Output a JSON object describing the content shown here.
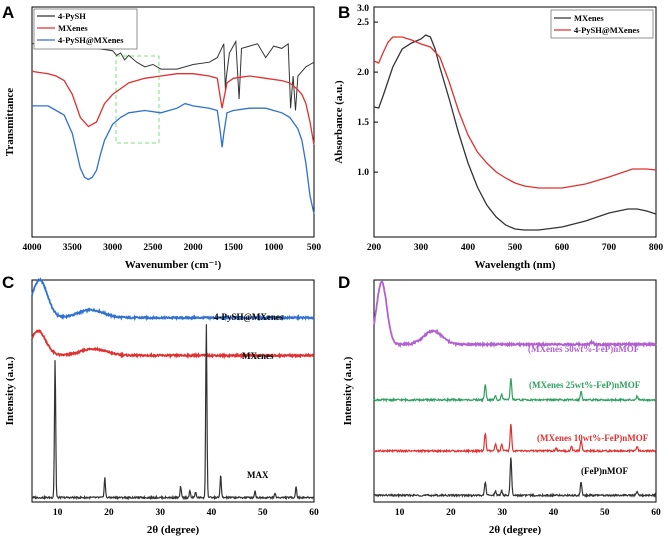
{
  "chart_data": [
    {
      "panel": "A",
      "type": "line",
      "xlabel": "Wavenumber (cm⁻¹)",
      "ylabel": "Transmittance",
      "xlim": [
        4000,
        500
      ],
      "ylim": [
        0,
        1
      ],
      "xticks": [
        4000,
        3500,
        3000,
        2500,
        2000,
        1500,
        1000,
        500
      ],
      "y_ticks_shown": false,
      "legend_position": "top-left",
      "highlight_region": [
        2900,
        2400
      ],
      "series": [
        {
          "name": "4-PySH",
          "color": "#333333",
          "x": [
            4000,
            3800,
            3600,
            3400,
            3200,
            3000,
            2950,
            2900,
            2850,
            2800,
            2700,
            2600,
            2500,
            2400,
            2200,
            2000,
            1800,
            1700,
            1620,
            1600,
            1590,
            1550,
            1470,
            1430,
            1400,
            1300,
            1200,
            1100,
            1000,
            900,
            820,
            790,
            760,
            730,
            700,
            650,
            600,
            550,
            500
          ],
          "y": [
            0.84,
            0.845,
            0.84,
            0.83,
            0.82,
            0.81,
            0.79,
            0.8,
            0.77,
            0.79,
            0.76,
            0.74,
            0.75,
            0.73,
            0.73,
            0.75,
            0.76,
            0.78,
            0.84,
            0.64,
            0.69,
            0.8,
            0.85,
            0.6,
            0.82,
            0.83,
            0.84,
            0.78,
            0.83,
            0.82,
            0.84,
            0.56,
            0.7,
            0.55,
            0.7,
            0.72,
            0.74,
            0.75,
            0.76
          ]
        },
        {
          "name": "MXenes",
          "color": "#e03030",
          "x": [
            4000,
            3800,
            3700,
            3600,
            3500,
            3400,
            3300,
            3200,
            3100,
            3000,
            2800,
            2600,
            2400,
            2200,
            2000,
            1800,
            1700,
            1660,
            1640,
            1620,
            1580,
            1500,
            1300,
            1100,
            900,
            800,
            700,
            650,
            600,
            550,
            500
          ],
          "y": [
            0.72,
            0.71,
            0.7,
            0.68,
            0.62,
            0.52,
            0.48,
            0.5,
            0.58,
            0.62,
            0.67,
            0.69,
            0.7,
            0.71,
            0.71,
            0.7,
            0.69,
            0.6,
            0.56,
            0.6,
            0.67,
            0.69,
            0.7,
            0.69,
            0.68,
            0.67,
            0.64,
            0.62,
            0.58,
            0.5,
            0.4
          ]
        },
        {
          "name": "4-PySH@MXenes",
          "color": "#3070d0",
          "x": [
            4000,
            3800,
            3700,
            3600,
            3500,
            3400,
            3350,
            3300,
            3250,
            3200,
            3150,
            3100,
            3000,
            2900,
            2800,
            2600,
            2400,
            2200,
            2100,
            2000,
            1800,
            1700,
            1660,
            1640,
            1620,
            1580,
            1500,
            1300,
            1100,
            1000,
            900,
            800,
            700,
            650,
            600,
            550,
            500
          ],
          "y": [
            0.57,
            0.57,
            0.55,
            0.53,
            0.45,
            0.3,
            0.26,
            0.25,
            0.26,
            0.29,
            0.36,
            0.42,
            0.49,
            0.52,
            0.54,
            0.55,
            0.54,
            0.56,
            0.58,
            0.57,
            0.56,
            0.55,
            0.45,
            0.39,
            0.45,
            0.54,
            0.55,
            0.56,
            0.56,
            0.55,
            0.54,
            0.52,
            0.47,
            0.42,
            0.32,
            0.18,
            0.1
          ]
        }
      ]
    },
    {
      "panel": "B",
      "type": "line",
      "xlabel": "Wavelength (nm)",
      "ylabel": "Absorbance (a.u.)",
      "xlim": [
        200,
        800
      ],
      "ylim": [
        0.7,
        3.0
      ],
      "xticks": [
        200,
        300,
        400,
        500,
        600,
        700,
        800
      ],
      "yticks": [
        1.0,
        1.5,
        2.0,
        2.5,
        3.0
      ],
      "legend_position": "top-right",
      "series": [
        {
          "name": "MXenes",
          "color": "#333333",
          "x": [
            200,
            210,
            220,
            240,
            260,
            280,
            300,
            310,
            320,
            330,
            340,
            360,
            380,
            400,
            420,
            440,
            460,
            480,
            500,
            520,
            550,
            600,
            650,
            700,
            740,
            760,
            780,
            800
          ],
          "y": [
            2.0,
            1.99,
            2.12,
            2.4,
            2.58,
            2.64,
            2.68,
            2.72,
            2.7,
            2.58,
            2.4,
            2.08,
            1.74,
            1.44,
            1.2,
            1.02,
            0.9,
            0.82,
            0.78,
            0.77,
            0.77,
            0.8,
            0.86,
            0.94,
            0.98,
            0.98,
            0.96,
            0.93
          ]
        },
        {
          "name": "4-PySH@MXenes",
          "color": "#e03030",
          "x": [
            200,
            210,
            220,
            230,
            240,
            260,
            280,
            300,
            320,
            340,
            360,
            380,
            400,
            420,
            440,
            460,
            480,
            500,
            520,
            550,
            600,
            650,
            700,
            750,
            780,
            800
          ],
          "y": [
            2.46,
            2.44,
            2.55,
            2.65,
            2.7,
            2.7,
            2.67,
            2.63,
            2.6,
            2.5,
            2.25,
            1.96,
            1.72,
            1.55,
            1.44,
            1.35,
            1.29,
            1.24,
            1.21,
            1.19,
            1.19,
            1.23,
            1.3,
            1.38,
            1.38,
            1.37
          ]
        }
      ]
    },
    {
      "panel": "C",
      "type": "line",
      "xlabel": "2θ (degree)",
      "ylabel": "Intensity (a.u.)",
      "xlim": [
        5,
        60
      ],
      "xticks": [
        10,
        20,
        30,
        40,
        50,
        60
      ],
      "y_ticks_shown": false,
      "annotations": [
        "4-PySH@MXenes",
        "MXenes",
        "MAX"
      ],
      "series": [
        {
          "name": "4-PySH@MXenes",
          "color": "#3070d0",
          "baseline": 0.83,
          "peaks": [
            [
              6.5,
              0.17,
              1.5
            ],
            [
              16.5,
              0.035,
              2.5
            ]
          ]
        },
        {
          "name": "MXenes",
          "color": "#e03030",
          "baseline": 0.66,
          "peaks": [
            [
              6.2,
              0.11,
              1.5
            ],
            [
              17.0,
              0.03,
              2.5
            ]
          ]
        },
        {
          "name": "MAX",
          "color": "#333333",
          "baseline": 0.02,
          "peaks": [
            [
              9.5,
              0.62,
              0.12
            ],
            [
              19.2,
              0.09,
              0.12
            ],
            [
              34.0,
              0.05,
              0.12
            ],
            [
              35.8,
              0.03,
              0.12
            ],
            [
              36.9,
              0.025,
              0.12
            ],
            [
              39.0,
              0.78,
              0.12
            ],
            [
              41.8,
              0.1,
              0.12
            ],
            [
              48.5,
              0.03,
              0.12
            ],
            [
              52.4,
              0.02,
              0.12
            ],
            [
              56.5,
              0.05,
              0.12
            ]
          ]
        }
      ]
    },
    {
      "panel": "D",
      "type": "line",
      "xlabel": "2θ (degree)",
      "ylabel": "Intensity (a.u.)",
      "xlim": [
        5,
        60
      ],
      "xticks": [
        10,
        20,
        30,
        40,
        50,
        60
      ],
      "y_ticks_shown": false,
      "annotations": [
        "(MXenes 50wt%-FeP)nMOF",
        "(MXenes 25wt%-FeP)nMOF",
        "(MXenes 10wt%-FeP)nMOF",
        "(FeP)nMOF"
      ],
      "series": [
        {
          "name": "(MXenes 50wt%-FeP)nMOF",
          "color": "#b060d0",
          "baseline": 0.71,
          "peaks": [
            [
              6.5,
              0.28,
              1.0
            ],
            [
              16.5,
              0.06,
              1.8
            ],
            [
              47.5,
              0.01,
              0.3
            ]
          ]
        },
        {
          "name": "(MXenes 25wt%-FeP)nMOF",
          "color": "#30a060",
          "baseline": 0.46,
          "peaks": [
            [
              26.7,
              0.07,
              0.15
            ],
            [
              28.7,
              0.02,
              0.15
            ],
            [
              29.9,
              0.025,
              0.15
            ],
            [
              31.7,
              0.1,
              0.15
            ],
            [
              45.4,
              0.04,
              0.15
            ],
            [
              56.3,
              0.015,
              0.15
            ]
          ]
        },
        {
          "name": "(MXenes 10wt%-FeP)nMOF",
          "color": "#e03030",
          "baseline": 0.23,
          "peaks": [
            [
              26.7,
              0.08,
              0.15
            ],
            [
              28.7,
              0.03,
              0.15
            ],
            [
              29.9,
              0.03,
              0.15
            ],
            [
              31.7,
              0.12,
              0.15
            ],
            [
              40.5,
              0.015,
              0.15
            ],
            [
              43.5,
              0.02,
              0.15
            ],
            [
              45.4,
              0.05,
              0.15
            ],
            [
              56.3,
              0.02,
              0.15
            ]
          ]
        },
        {
          "name": "(FeP)nMOF",
          "color": "#333333",
          "baseline": 0.03,
          "peaks": [
            [
              26.7,
              0.06,
              0.15
            ],
            [
              28.7,
              0.02,
              0.15
            ],
            [
              29.9,
              0.02,
              0.15
            ],
            [
              31.7,
              0.17,
              0.15
            ],
            [
              45.4,
              0.06,
              0.15
            ],
            [
              56.3,
              0.02,
              0.15
            ]
          ]
        }
      ]
    }
  ]
}
